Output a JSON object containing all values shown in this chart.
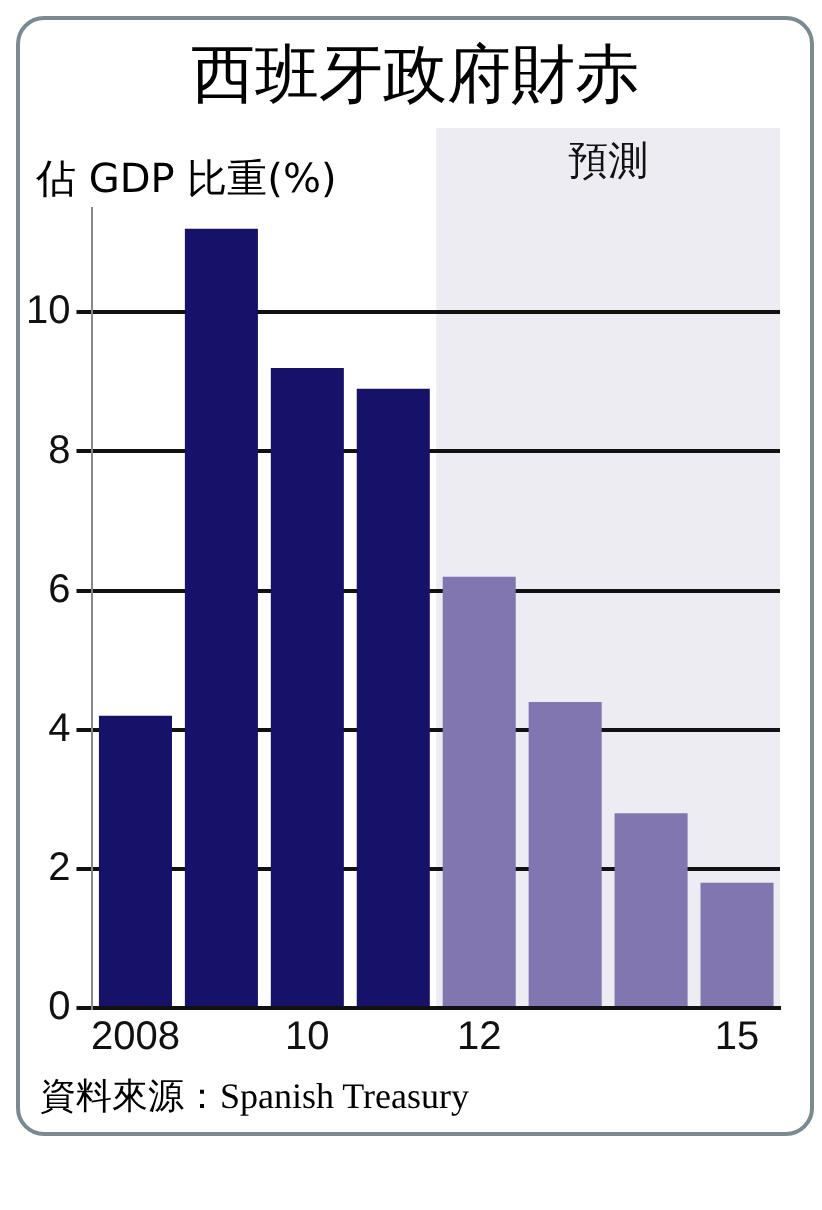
{
  "chart_data": {
    "type": "bar",
    "title": "西班牙政府財赤",
    "ylabel": "佔 GDP 比重(%)",
    "categories": [
      "2008",
      null,
      "10",
      null,
      "12",
      null,
      null,
      "15"
    ],
    "values": [
      4.2,
      11.2,
      9.2,
      8.9,
      6.2,
      4.4,
      2.8,
      1.8
    ],
    "colors": [
      "#16126a",
      "#16126a",
      "#16126a",
      "#16126a",
      "#8176b0",
      "#8176b0",
      "#8176b0",
      "#8176b0"
    ],
    "ylim": [
      0,
      11.5
    ],
    "yticks": [
      0,
      2,
      4,
      6,
      8,
      10
    ],
    "grid": "y",
    "bands": [
      {
        "axis": "x",
        "from": "12",
        "to": "15",
        "label": "預測",
        "color": "#eeecf3"
      }
    ],
    "annotations": [
      "資料來源：Spanish Treasury"
    ]
  }
}
